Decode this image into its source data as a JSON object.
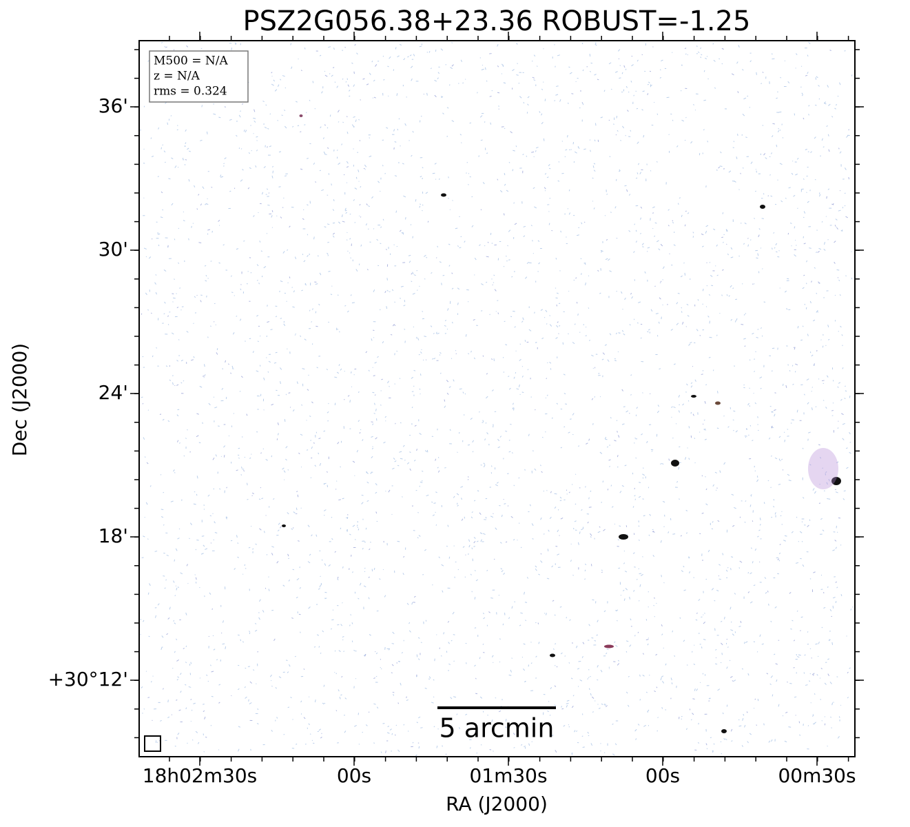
{
  "figure": {
    "title": "PSZ2G056.38+23.36 ROBUST=-1.25",
    "x_axis": {
      "label": "RA (J2000)",
      "tick_labels": [
        "18h02m30s",
        "00s",
        "01m30s",
        "00s",
        "00m30s"
      ]
    },
    "y_axis": {
      "label": "Dec (J2000)",
      "tick_labels": [
        "36'",
        "30'",
        "24'",
        "18'",
        "+30°12'"
      ]
    },
    "info_box": [
      "M500 = N/A",
      "z = N/A",
      "rms = 0.324"
    ],
    "scale_bar": "5 arcmin"
  }
}
